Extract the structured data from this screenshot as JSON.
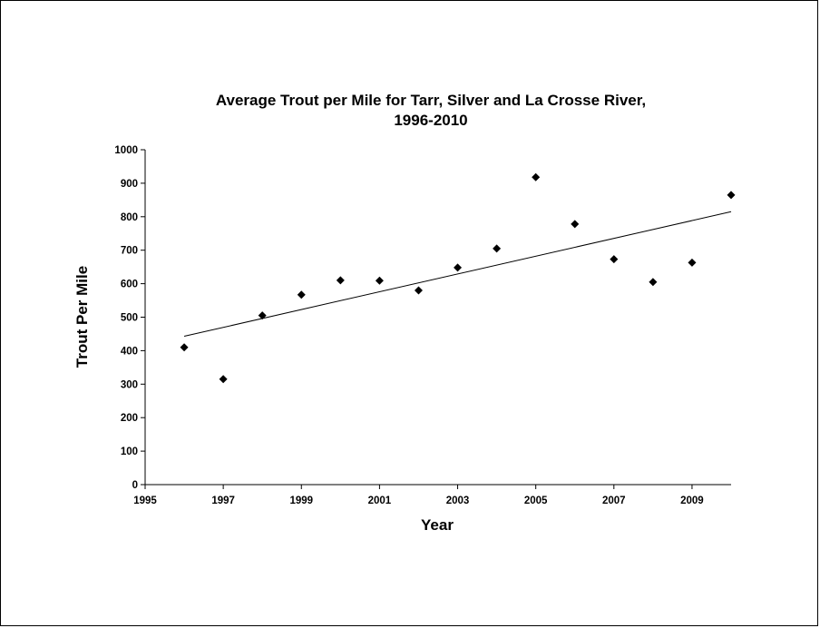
{
  "chart_data": {
    "type": "scatter",
    "title_lines": [
      "Average Trout per Mile for Tarr, Silver and La Crosse River,",
      "1996-2010"
    ],
    "xlabel": "Year",
    "ylabel": "Trout Per Mile",
    "xlim": [
      1995,
      2010
    ],
    "ylim": [
      0,
      1000
    ],
    "x_ticks": [
      1995,
      1997,
      1999,
      2001,
      2003,
      2005,
      2007,
      2009
    ],
    "y_ticks": [
      0,
      100,
      200,
      300,
      400,
      500,
      600,
      700,
      800,
      900,
      1000
    ],
    "grid": false,
    "legend": "none",
    "marker": "diamond",
    "marker_color": "#000000",
    "points": [
      {
        "x": 1996,
        "y": 410
      },
      {
        "x": 1997,
        "y": 315
      },
      {
        "x": 1998,
        "y": 505
      },
      {
        "x": 1999,
        "y": 567
      },
      {
        "x": 2000,
        "y": 610
      },
      {
        "x": 2001,
        "y": 609
      },
      {
        "x": 2002,
        "y": 580
      },
      {
        "x": 2003,
        "y": 648
      },
      {
        "x": 2004,
        "y": 705
      },
      {
        "x": 2005,
        "y": 918
      },
      {
        "x": 2006,
        "y": 778
      },
      {
        "x": 2007,
        "y": 673
      },
      {
        "x": 2008,
        "y": 605
      },
      {
        "x": 2009,
        "y": 663
      },
      {
        "x": 2010,
        "y": 865
      }
    ],
    "trendline": {
      "type": "linear",
      "from": {
        "x": 1996,
        "y": 443
      },
      "to": {
        "x": 2010,
        "y": 815
      }
    }
  }
}
